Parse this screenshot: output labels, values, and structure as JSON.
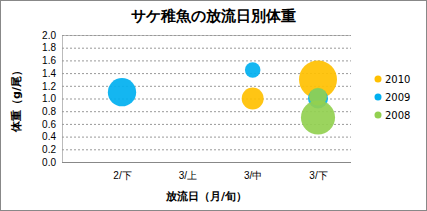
{
  "chart_data": {
    "type": "bubble",
    "title": "サケ稚魚の放流日別体重",
    "x_label": "放流日（月/旬）",
    "y_label": "体重（g/尾）",
    "categories": [
      "2/下",
      "3/上",
      "3/中",
      "3/下"
    ],
    "series": [
      {
        "name": "2010",
        "color": "#ffc000",
        "x": [
          "3/中",
          "3/下"
        ],
        "values": [
          1.0,
          1.3
        ],
        "sizes": [
          12,
          36
        ]
      },
      {
        "name": "2009",
        "color": "#00b0f0",
        "x": [
          "2/下",
          "3/中",
          "3/下"
        ],
        "values": [
          1.1,
          1.45,
          1.0
        ],
        "sizes": [
          20,
          6,
          10
        ]
      },
      {
        "name": "2008",
        "color": "#92d050",
        "x": [
          "3/下",
          "3/下"
        ],
        "values": [
          0.7,
          1.03
        ],
        "sizes": [
          29,
          8
        ]
      }
    ],
    "ylim": [
      0,
      2.0
    ],
    "yticks": [
      {
        "value": 0,
        "label": "0.0"
      },
      {
        "value": 0.2,
        "label": "0.2"
      },
      {
        "value": 0.4,
        "label": "0.4"
      },
      {
        "value": 0.6,
        "label": "0.6"
      },
      {
        "value": 0.8,
        "label": "0.8"
      },
      {
        "value": 1.0,
        "label": "1.0"
      },
      {
        "value": 1.2,
        "label": "1.2"
      },
      {
        "value": 1.4,
        "label": "1.4"
      },
      {
        "value": 1.6,
        "label": "1.6"
      },
      {
        "value": 1.8,
        "label": "1.8"
      },
      {
        "value": 2.0,
        "label": "2.0"
      }
    ],
    "grid": true,
    "legend": "right"
  }
}
